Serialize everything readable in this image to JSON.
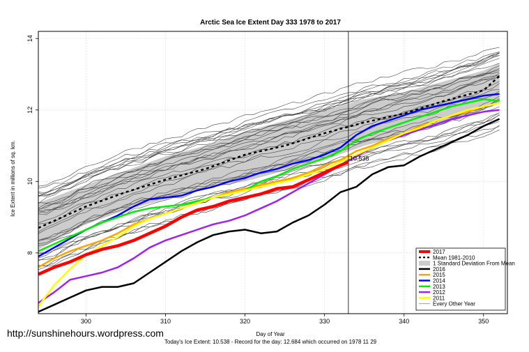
{
  "watermark": "http://sunshinehours.wordpress.com",
  "footer": "Today's Ice Extent: 10.538  - Record for the day: 12.684 which occurred on 1978 11 29",
  "colors": {
    "y2017": "#ff0000",
    "mean": "#000000",
    "sd_band": "#cccccc",
    "y2016": "#000000",
    "y2015": "#ffa500",
    "y2014": "#0000ff",
    "y2013": "#00ee00",
    "y2012": "#a020f0",
    "y2011": "#ffff00",
    "other": "#444444",
    "marker_label": "#ff0000"
  },
  "chart_data": {
    "type": "line",
    "title": "Arctic Sea Ice Extent Day 333 1978 to 2017",
    "xlabel": "Day of Year",
    "ylabel": "Ice Extent in millions of sq. km.",
    "xlim": [
      294,
      353
    ],
    "ylim": [
      6.3,
      14.2
    ],
    "x_ticks": [
      300,
      310,
      320,
      330,
      340,
      350
    ],
    "y_ticks": [
      8,
      10,
      12,
      14
    ],
    "grid": true,
    "legend_position": "bottom-right",
    "vline_x": 333,
    "annotation": {
      "x": 333,
      "y": 10.538,
      "text": "10.538"
    },
    "legend": [
      "2017",
      "Mean 1981-2010",
      "1 Standard Deviation From Mean",
      "2016",
      "2015",
      "2014",
      "2013",
      "2012",
      "2011",
      "Every Other Year"
    ],
    "band": {
      "name": "1 Standard Deviation From Mean",
      "x": [
        294,
        300,
        305,
        310,
        315,
        320,
        325,
        330,
        335,
        340,
        345,
        350,
        352
      ],
      "lower": [
        8.1,
        8.8,
        9.2,
        9.5,
        9.8,
        10.0,
        10.3,
        10.6,
        11.0,
        11.3,
        11.6,
        12.0,
        12.2
      ],
      "upper": [
        9.4,
        9.9,
        10.3,
        10.7,
        11.0,
        11.4,
        11.7,
        12.0,
        12.3,
        12.5,
        12.8,
        13.1,
        13.3
      ]
    },
    "series": [
      {
        "name": "Mean 1981-2010",
        "x": [
          294,
          300,
          305,
          310,
          315,
          320,
          325,
          330,
          335,
          340,
          345,
          350,
          352
        ],
        "values": [
          8.7,
          9.3,
          9.7,
          10.05,
          10.35,
          10.75,
          11.0,
          11.35,
          11.65,
          11.9,
          12.25,
          12.55,
          12.95
        ]
      },
      {
        "name": "2016",
        "x": [
          294,
          296,
          298,
          300,
          302,
          304,
          306,
          308,
          310,
          312,
          314,
          316,
          318,
          320,
          322,
          324,
          326,
          328,
          330,
          332,
          334,
          336,
          338,
          340,
          342,
          344,
          346,
          348,
          350,
          352
        ],
        "values": [
          6.35,
          6.55,
          6.75,
          6.95,
          7.05,
          7.05,
          7.15,
          7.45,
          7.75,
          8.05,
          8.3,
          8.5,
          8.6,
          8.65,
          8.55,
          8.6,
          8.85,
          9.05,
          9.35,
          9.7,
          9.85,
          10.2,
          10.4,
          10.45,
          10.7,
          10.9,
          11.1,
          11.3,
          11.55,
          11.75
        ]
      },
      {
        "name": "2015",
        "x": [
          294,
          296,
          298,
          300,
          302,
          304,
          306,
          308,
          310,
          312,
          314,
          316,
          318,
          320,
          322,
          324,
          326,
          328,
          330,
          332,
          334,
          336,
          338,
          340,
          342,
          344,
          346,
          348,
          350,
          352
        ],
        "values": [
          7.6,
          7.85,
          8.05,
          8.2,
          8.35,
          8.55,
          8.8,
          8.95,
          9.1,
          9.25,
          9.4,
          9.55,
          9.7,
          9.8,
          9.9,
          10.0,
          10.1,
          10.25,
          10.45,
          10.6,
          10.85,
          11.0,
          11.2,
          11.35,
          11.55,
          11.7,
          11.85,
          11.95,
          12.1,
          12.2
        ]
      },
      {
        "name": "2014",
        "x": [
          294,
          296,
          298,
          300,
          302,
          304,
          306,
          308,
          310,
          312,
          314,
          316,
          318,
          320,
          322,
          324,
          326,
          328,
          330,
          332,
          334,
          336,
          338,
          340,
          342,
          344,
          346,
          348,
          350,
          352
        ],
        "values": [
          7.9,
          8.15,
          8.4,
          8.65,
          8.85,
          9.05,
          9.3,
          9.5,
          9.55,
          9.6,
          9.75,
          9.85,
          10.0,
          10.1,
          10.25,
          10.35,
          10.5,
          10.6,
          10.75,
          10.95,
          11.3,
          11.55,
          11.7,
          11.85,
          12.0,
          12.1,
          12.2,
          12.3,
          12.4,
          12.45
        ]
      },
      {
        "name": "2013",
        "x": [
          294,
          296,
          298,
          300,
          302,
          304,
          306,
          308,
          310,
          312,
          314,
          316,
          318,
          320,
          322,
          324,
          326,
          328,
          330,
          332,
          334,
          336,
          338,
          340,
          342,
          344,
          346,
          348,
          350,
          352
        ],
        "values": [
          8.05,
          8.25,
          8.45,
          8.65,
          8.85,
          9.0,
          9.15,
          9.25,
          9.3,
          9.35,
          9.45,
          9.55,
          9.65,
          9.75,
          10.0,
          10.15,
          10.35,
          10.5,
          10.65,
          10.85,
          11.15,
          11.35,
          11.5,
          11.65,
          11.8,
          11.95,
          12.1,
          12.2,
          12.3,
          12.25
        ]
      },
      {
        "name": "2012",
        "x": [
          294,
          296,
          298,
          300,
          302,
          304,
          306,
          308,
          310,
          312,
          314,
          316,
          318,
          320,
          322,
          324,
          326,
          328,
          330,
          332,
          334,
          336,
          338,
          340,
          342,
          344,
          346,
          348,
          350,
          352
        ],
        "values": [
          6.6,
          6.9,
          7.25,
          7.35,
          7.45,
          7.6,
          7.85,
          8.15,
          8.35,
          8.5,
          8.65,
          8.8,
          8.9,
          9.05,
          9.25,
          9.45,
          9.7,
          9.95,
          10.2,
          10.45,
          10.7,
          10.95,
          11.15,
          11.3,
          11.45,
          11.6,
          11.75,
          11.85,
          11.95,
          12.0
        ]
      },
      {
        "name": "2011",
        "x": [
          294,
          296,
          298,
          300,
          302,
          304,
          306,
          308,
          310,
          312,
          314,
          316,
          318,
          320,
          322,
          324,
          326,
          328,
          330,
          332,
          334,
          336,
          338,
          340,
          342,
          344,
          346,
          348,
          350,
          352
        ],
        "values": [
          6.5,
          7.1,
          7.55,
          7.95,
          8.2,
          8.45,
          8.75,
          8.95,
          9.1,
          9.25,
          9.4,
          9.55,
          9.65,
          9.75,
          9.85,
          9.95,
          10.05,
          10.2,
          10.35,
          10.55,
          10.75,
          10.95,
          11.15,
          11.35,
          11.5,
          11.7,
          11.85,
          12.0,
          12.1,
          12.2
        ]
      },
      {
        "name": "2017",
        "x": [
          294,
          296,
          298,
          300,
          302,
          304,
          306,
          308,
          310,
          312,
          314,
          316,
          318,
          320,
          322,
          324,
          326,
          328,
          330,
          332,
          333
        ],
        "values": [
          7.4,
          7.6,
          7.75,
          7.95,
          8.1,
          8.2,
          8.35,
          8.55,
          8.75,
          9.0,
          9.2,
          9.3,
          9.45,
          9.55,
          9.65,
          9.8,
          9.85,
          10.05,
          10.25,
          10.45,
          10.538
        ]
      }
    ]
  }
}
